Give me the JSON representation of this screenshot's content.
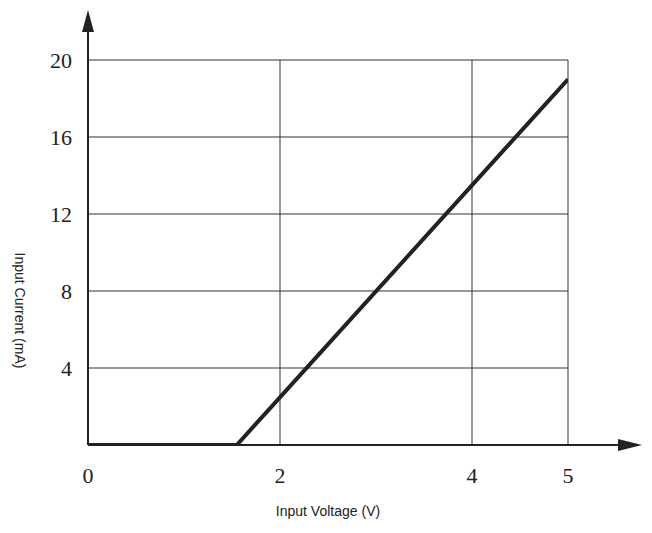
{
  "chart_data": {
    "type": "line",
    "xlabel": "Input Voltage (V)",
    "ylabel": "Input Current (mA)",
    "x": [
      0,
      1.55,
      5
    ],
    "values": [
      0,
      0,
      19
    ],
    "color": "#222222",
    "xlim": [
      0,
      5
    ],
    "xticks": [
      0,
      2,
      4,
      5
    ],
    "ylim": [
      0,
      20
    ],
    "yticks": [
      4,
      8,
      12,
      16,
      20
    ],
    "grid": true
  }
}
